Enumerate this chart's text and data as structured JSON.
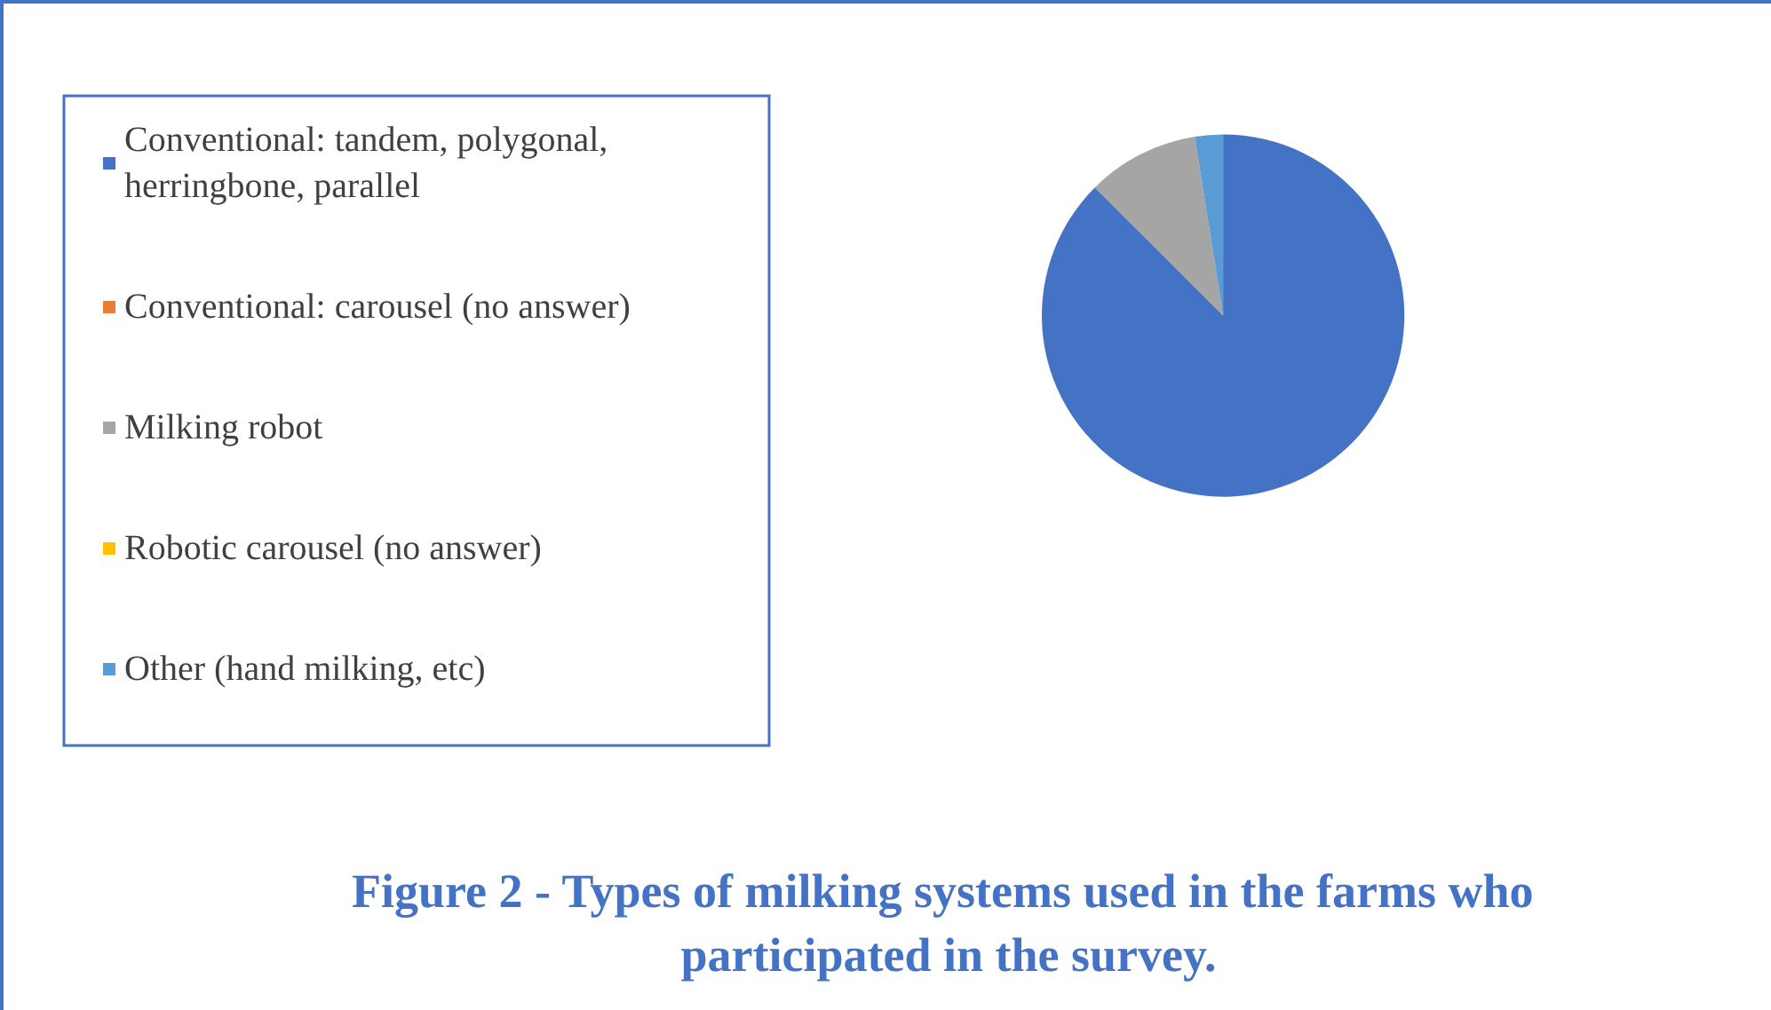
{
  "chart_data": {
    "type": "pie",
    "title": "Figure 2 - Types of milking systems used in the farms who participated in the survey.",
    "categories": [
      "Conventional: tandem, polygonal, herringbone, parallel",
      "Conventional: carousel (no answer)",
      "Milking robot",
      "Robotic carousel (no answer)",
      "Other (hand milking, etc)"
    ],
    "values": [
      87.5,
      0,
      10,
      0,
      2.5
    ],
    "colors": [
      "#4472c4",
      "#ed7d31",
      "#a5a5a5",
      "#ffc000",
      "#5b9bd5"
    ],
    "legend": "left"
  }
}
